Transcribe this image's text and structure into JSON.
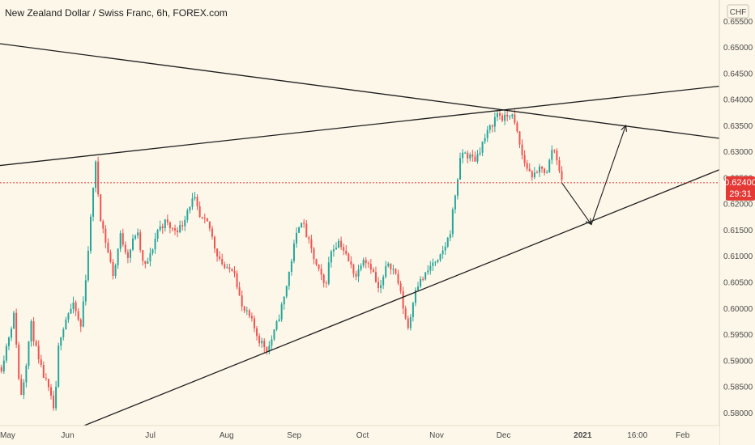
{
  "header": {
    "title": "New Zealand Dollar / Swiss Franc, 6h, FOREX.com"
  },
  "colors": {
    "background": "#fdf7e9",
    "up": "#26a69a",
    "down": "#ef5350",
    "line": "#1e1e1e",
    "price_badge": "#e53935",
    "axis_text": "#4a4a4a"
  },
  "price_axis": {
    "currency_label": "CHF",
    "current_price": "0.62400",
    "countdown": "29:31"
  },
  "chart_data": {
    "type": "candlestick",
    "title": "New Zealand Dollar / Swiss Franc, 6h, FOREX.com",
    "y_range": [
      0.5775,
      0.659
    ],
    "y_ticks": [
      "0.65500",
      "0.65000",
      "0.64500",
      "0.64000",
      "0.63500",
      "0.63000",
      "0.62500",
      "0.62000",
      "0.61500",
      "0.61000",
      "0.60500",
      "0.60000",
      "0.59500",
      "0.59000",
      "0.58500",
      "0.58000"
    ],
    "x_ticks": [
      {
        "label": "May",
        "pos": 0.0
      },
      {
        "label": "Jun",
        "pos": 0.094
      },
      {
        "label": "Jul",
        "pos": 0.209
      },
      {
        "label": "Aug",
        "pos": 0.315
      },
      {
        "label": "Sep",
        "pos": 0.409
      },
      {
        "label": "Oct",
        "pos": 0.504
      },
      {
        "label": "Nov",
        "pos": 0.607
      },
      {
        "label": "Dec",
        "pos": 0.7
      },
      {
        "label": "2021",
        "pos": 0.81
      },
      {
        "label": "16:00",
        "pos": 0.886
      },
      {
        "label": "Feb",
        "pos": 0.949
      }
    ],
    "price_path": [
      [
        0.0,
        0.5875
      ],
      [
        0.012,
        0.5945
      ],
      [
        0.02,
        0.599
      ],
      [
        0.028,
        0.5825
      ],
      [
        0.034,
        0.587
      ],
      [
        0.043,
        0.597
      ],
      [
        0.054,
        0.5895
      ],
      [
        0.066,
        0.585
      ],
      [
        0.076,
        0.58
      ],
      [
        0.082,
        0.594
      ],
      [
        0.094,
        0.599
      ],
      [
        0.103,
        0.6005
      ],
      [
        0.112,
        0.596
      ],
      [
        0.12,
        0.607
      ],
      [
        0.128,
        0.62
      ],
      [
        0.132,
        0.629
      ],
      [
        0.139,
        0.618
      ],
      [
        0.148,
        0.612
      ],
      [
        0.158,
        0.606
      ],
      [
        0.167,
        0.614
      ],
      [
        0.178,
        0.61
      ],
      [
        0.19,
        0.615
      ],
      [
        0.2,
        0.6075
      ],
      [
        0.209,
        0.61
      ],
      [
        0.219,
        0.615
      ],
      [
        0.23,
        0.6165
      ],
      [
        0.24,
        0.615
      ],
      [
        0.252,
        0.6155
      ],
      [
        0.262,
        0.6195
      ],
      [
        0.27,
        0.621
      ],
      [
        0.278,
        0.617
      ],
      [
        0.29,
        0.616
      ],
      [
        0.3,
        0.611
      ],
      [
        0.315,
        0.607
      ],
      [
        0.325,
        0.608
      ],
      [
        0.336,
        0.6
      ],
      [
        0.348,
        0.598
      ],
      [
        0.36,
        0.594
      ],
      [
        0.372,
        0.592
      ],
      [
        0.383,
        0.596
      ],
      [
        0.395,
        0.602
      ],
      [
        0.409,
        0.612
      ],
      [
        0.418,
        0.6175
      ],
      [
        0.428,
        0.613
      ],
      [
        0.44,
        0.608
      ],
      [
        0.452,
        0.604
      ],
      [
        0.46,
        0.611
      ],
      [
        0.472,
        0.613
      ],
      [
        0.484,
        0.609
      ],
      [
        0.496,
        0.606
      ],
      [
        0.504,
        0.61
      ],
      [
        0.516,
        0.608
      ],
      [
        0.527,
        0.603
      ],
      [
        0.54,
        0.609
      ],
      [
        0.552,
        0.606
      ],
      [
        0.563,
        0.5985
      ],
      [
        0.568,
        0.596
      ],
      [
        0.577,
        0.604
      ],
      [
        0.59,
        0.606
      ],
      [
        0.603,
        0.609
      ],
      [
        0.607,
        0.608
      ],
      [
        0.616,
        0.611
      ],
      [
        0.625,
        0.614
      ],
      [
        0.634,
        0.623
      ],
      [
        0.642,
        0.63
      ],
      [
        0.652,
        0.629
      ],
      [
        0.661,
        0.6285
      ],
      [
        0.672,
        0.632
      ],
      [
        0.683,
        0.635
      ],
      [
        0.692,
        0.6375
      ],
      [
        0.7,
        0.636
      ],
      [
        0.71,
        0.6375
      ],
      [
        0.718,
        0.634
      ],
      [
        0.727,
        0.6285
      ],
      [
        0.736,
        0.626
      ],
      [
        0.745,
        0.625
      ],
      [
        0.752,
        0.6275
      ],
      [
        0.76,
        0.6255
      ],
      [
        0.768,
        0.631
      ],
      [
        0.775,
        0.6285
      ],
      [
        0.781,
        0.624
      ]
    ],
    "trend_lines": [
      {
        "name": "upper-resistance-line",
        "from": [
          -0.02,
          0.651
        ],
        "to": [
          1.0,
          0.6325
        ]
      },
      {
        "name": "rising-support-line",
        "from": [
          -0.02,
          0.627
        ],
        "to": [
          1.0,
          0.6425
        ]
      },
      {
        "name": "triangle-lower-line",
        "from": [
          0.117,
          0.5775
        ],
        "to": [
          1.0,
          0.6265
        ]
      }
    ],
    "arrows": [
      {
        "name": "projected-drop-arrow",
        "from": [
          0.781,
          0.624
        ],
        "to": [
          0.822,
          0.616
        ]
      },
      {
        "name": "projected-rise-arrow",
        "from": [
          0.822,
          0.616
        ],
        "to": [
          0.87,
          0.635
        ]
      }
    ],
    "current_price_value": 0.624
  }
}
